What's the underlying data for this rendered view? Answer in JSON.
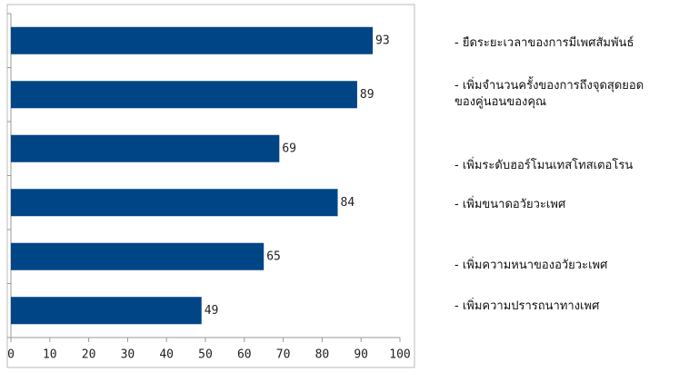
{
  "chart_data": {
    "type": "hbar",
    "categories": [
      "- ยืดระยะเวลาของการมีเพศสัมพันธ์",
      "- เพิ่มจำนวนครั้งของการถึงจุดสุดยอด\nของคู่นอนของคุณ",
      "- เพิ่มระดับฮอร์โมนเทสโทสเตอโรน",
      "- เพิ่มขนาดอวัยวะเพศ",
      "- เพิ่มความหนาของอวัยวะเพศ",
      "- เพิ่มความปรารถนาทางเพศ"
    ],
    "values": [
      93,
      89,
      69,
      84,
      65,
      49
    ],
    "color": "#004586",
    "xlim": [
      0,
      100
    ],
    "xticks": [
      0,
      10,
      20,
      30,
      40,
      50,
      60,
      70,
      80,
      90,
      100
    ],
    "data_labels": true
  }
}
